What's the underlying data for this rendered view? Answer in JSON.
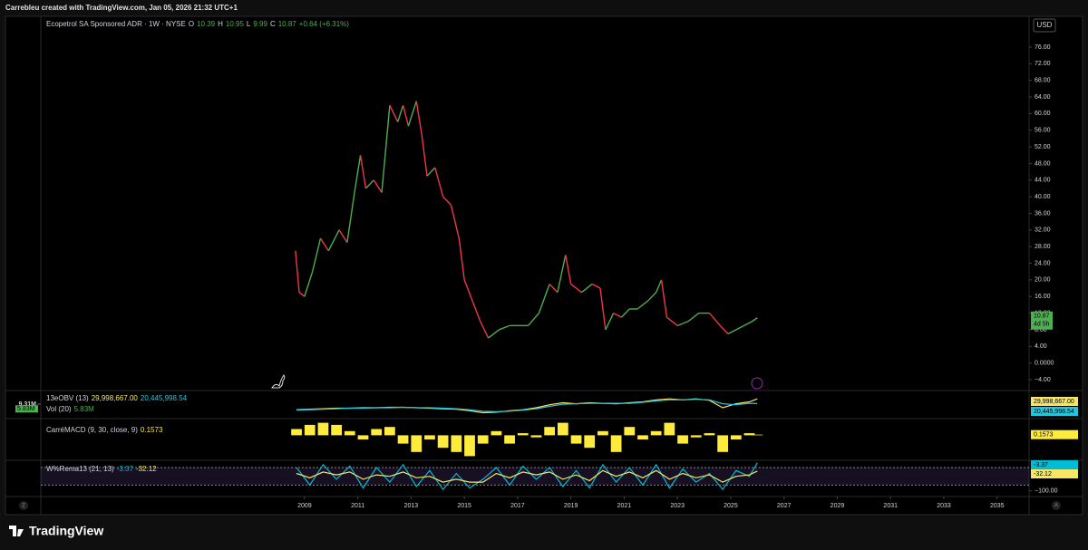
{
  "page": {
    "header": "Carrebleu created with TradingView.com, Jan 05, 2026 21:32 UTC+1",
    "brand": "TradingView",
    "currency": "USD",
    "axis_buttons": [
      "Z",
      "A"
    ]
  },
  "chart_data": [
    {
      "type": "line",
      "title": "Ecopetrol SA Sponsored ADR · 1W · NYSE",
      "ohlc": [
        {
          "key": "O",
          "value": 10.39
        },
        {
          "key": "H",
          "value": 10.95
        },
        {
          "key": "L",
          "value": 9.99
        },
        {
          "key": "C",
          "value": 10.87
        }
      ],
      "change": "+0.64 (+6.31%)",
      "last": {
        "value": 10.87,
        "label": "10.87",
        "countdown": "4d 5h"
      },
      "colors": {
        "up": "#4caf50",
        "down": "#f23645"
      },
      "x": [
        2008.66,
        2008.8,
        2009.0,
        2009.3,
        2009.6,
        2009.9,
        2010.3,
        2010.6,
        2010.9,
        2011.1,
        2011.3,
        2011.6,
        2011.9,
        2012.2,
        2012.5,
        2012.7,
        2012.9,
        2013.2,
        2013.4,
        2013.6,
        2013.9,
        2014.2,
        2014.5,
        2014.8,
        2015.0,
        2015.3,
        2015.6,
        2015.9,
        2016.3,
        2016.7,
        2017.0,
        2017.4,
        2017.8,
        2018.2,
        2018.5,
        2018.8,
        2019.0,
        2019.4,
        2019.8,
        2020.1,
        2020.3,
        2020.6,
        2020.9,
        2021.2,
        2021.5,
        2021.9,
        2022.2,
        2022.4,
        2022.6,
        2023.0,
        2023.4,
        2023.8,
        2024.2,
        2024.6,
        2024.9,
        2025.2,
        2025.5,
        2025.8,
        2026.0
      ],
      "values": [
        27,
        17,
        16,
        22,
        30,
        27,
        32,
        29,
        42,
        50,
        42,
        44,
        41,
        62,
        58,
        62,
        57,
        63,
        55,
        45,
        47,
        40,
        38,
        30,
        20,
        15,
        10,
        6,
        8,
        9,
        9,
        9,
        12,
        19,
        17,
        26,
        19,
        17,
        19,
        18,
        8,
        12,
        11,
        13,
        13,
        15,
        17,
        20,
        11,
        9,
        10,
        12,
        12,
        9,
        7,
        8,
        9,
        10,
        10.87
      ],
      "xlim": [
        1999.1,
        2036.2
      ],
      "xticks": [
        2009,
        2011,
        2013,
        2015,
        2017,
        2019,
        2021,
        2023,
        2025,
        2027,
        2029,
        2031,
        2033,
        2035
      ],
      "ylim": [
        -6.4,
        83.4
      ],
      "yticks": [
        {
          "value": 76,
          "label": "76.00"
        },
        {
          "value": 72,
          "label": "72.00"
        },
        {
          "value": 68,
          "label": "68.00"
        },
        {
          "value": 64,
          "label": "64.00"
        },
        {
          "value": 60,
          "label": "60.00"
        },
        {
          "value": 56,
          "label": "56.00"
        },
        {
          "value": 52,
          "label": "52.00"
        },
        {
          "value": 48,
          "label": "48.00"
        },
        {
          "value": 44,
          "label": "44.00"
        },
        {
          "value": 40,
          "label": "40.00"
        },
        {
          "value": 36,
          "label": "36.00"
        },
        {
          "value": 32,
          "label": "32.00"
        },
        {
          "value": 28,
          "label": "28.00"
        },
        {
          "value": 24,
          "label": "24.00"
        },
        {
          "value": 20,
          "label": "20.00"
        },
        {
          "value": 16,
          "label": "16.00"
        },
        {
          "value": 12,
          "label": "12.00"
        },
        {
          "value": 8,
          "label": "8.00"
        },
        {
          "value": 4,
          "label": "4.00"
        },
        {
          "value": 0,
          "label": "0.0000"
        },
        {
          "value": -4,
          "label": "−4.00"
        }
      ],
      "grid": false
    },
    {
      "type": "line",
      "title": "13eOBV (13)",
      "x": [
        2008.7,
        2009.2,
        2009.7,
        2010.2,
        2010.7,
        2011.2,
        2011.7,
        2012.2,
        2012.7,
        2013.2,
        2013.7,
        2014.2,
        2014.7,
        2015.2,
        2015.7,
        2016.2,
        2016.7,
        2017.2,
        2017.7,
        2018.2,
        2018.7,
        2019.2,
        2019.7,
        2020.2,
        2020.7,
        2021.2,
        2021.7,
        2022.2,
        2022.7,
        2023.2,
        2023.7,
        2024.2,
        2024.7,
        2025.2,
        2025.7,
        2026.0
      ],
      "series": [
        {
          "color": "#f5e663",
          "values": [
            8000000,
            9000000,
            10000000,
            11000000,
            11000000,
            12000000,
            12000000,
            13000000,
            13000000,
            12000000,
            11000000,
            10000000,
            9000000,
            6000000,
            2000000,
            3000000,
            6000000,
            8000000,
            12000000,
            18000000,
            22000000,
            20000000,
            22000000,
            21000000,
            20000000,
            22000000,
            24000000,
            28000000,
            30000000,
            28000000,
            30000000,
            27000000,
            12000000,
            20000000,
            24000000,
            29998667
          ]
        },
        {
          "color": "#26c6da",
          "values": [
            7000000,
            8000000,
            9000000,
            10000000,
            11000000,
            11000000,
            12000000,
            12000000,
            13000000,
            12000000,
            12000000,
            11000000,
            10000000,
            8000000,
            5000000,
            4000000,
            5000000,
            7000000,
            10000000,
            15000000,
            19000000,
            20000000,
            21000000,
            21000000,
            21000000,
            21000000,
            23000000,
            26000000,
            28000000,
            28000000,
            29000000,
            28000000,
            20000000,
            18000000,
            21000000,
            20445998.54
          ]
        }
      ],
      "last_labels": [
        "29,998,667.00",
        "20,445,998.54"
      ],
      "volume": {
        "name": "Vol (20)",
        "value": 5830000,
        "value_label": "5.83M",
        "scale_max": 9310000,
        "scale_max_label": "9.31M",
        "color": "#4caf50"
      },
      "ylim": [
        -10000000,
        45000000
      ]
    },
    {
      "type": "bar",
      "title": "CarréMACD (9, 30, close, 9)",
      "color": "#ffeb3b",
      "x": [
        2008.7,
        2009.2,
        2009.7,
        2010.2,
        2010.7,
        2011.2,
        2011.7,
        2012.2,
        2012.7,
        2013.2,
        2013.7,
        2014.2,
        2014.7,
        2015.2,
        2015.7,
        2016.2,
        2016.7,
        2017.2,
        2017.7,
        2018.2,
        2018.7,
        2019.2,
        2019.7,
        2020.2,
        2020.7,
        2021.2,
        2021.7,
        2022.2,
        2022.7,
        2023.2,
        2023.7,
        2024.2,
        2024.7,
        2025.2,
        2025.7,
        2026.0
      ],
      "values": [
        1.5,
        2.5,
        3,
        2.5,
        1,
        -1,
        1.5,
        2,
        -2,
        -4,
        -1,
        -3,
        -4,
        -5,
        -2,
        1,
        -2,
        0.5,
        -0.5,
        2,
        3,
        -2,
        -3,
        1,
        -4,
        2,
        -1,
        1,
        3,
        -2,
        -0.5,
        0.5,
        -4,
        -1,
        0.5,
        0.1573
      ],
      "ylim": [
        -6,
        4
      ]
    },
    {
      "type": "line",
      "title": "W%Rema13 (21, 13)",
      "x": [
        2008.7,
        2009.2,
        2009.7,
        2010.2,
        2010.7,
        2011.2,
        2011.7,
        2012.2,
        2012.7,
        2013.2,
        2013.7,
        2014.2,
        2014.7,
        2015.2,
        2015.7,
        2016.2,
        2016.7,
        2017.2,
        2017.7,
        2018.2,
        2018.7,
        2019.2,
        2019.7,
        2020.2,
        2020.7,
        2021.2,
        2021.7,
        2022.2,
        2022.7,
        2023.2,
        2023.7,
        2024.2,
        2024.7,
        2025.2,
        2025.7,
        2026.0
      ],
      "series": [
        {
          "color": "#00bcd4",
          "values": [
            -20,
            -80,
            -10,
            -60,
            -15,
            -90,
            -20,
            -70,
            -10,
            -85,
            -30,
            -95,
            -40,
            -90,
            -60,
            -20,
            -80,
            -15,
            -60,
            -20,
            -85,
            -30,
            -90,
            -10,
            -70,
            -20,
            -80,
            -10,
            -90,
            -25,
            -70,
            -40,
            -95,
            -30,
            -50,
            -3.37
          ]
        },
        {
          "color": "#f5e663",
          "values": [
            -40,
            -55,
            -35,
            -45,
            -35,
            -60,
            -45,
            -50,
            -35,
            -55,
            -50,
            -70,
            -60,
            -70,
            -70,
            -40,
            -55,
            -35,
            -45,
            -35,
            -60,
            -45,
            -65,
            -30,
            -50,
            -35,
            -55,
            -30,
            -60,
            -40,
            -55,
            -45,
            -70,
            -50,
            -45,
            -32.12
          ]
        }
      ],
      "levels": [
        -20,
        -80
      ],
      "ylim": [
        -110,
        5
      ],
      "yticks": [
        {
          "value": -100,
          "label": "−100.00"
        }
      ]
    }
  ]
}
